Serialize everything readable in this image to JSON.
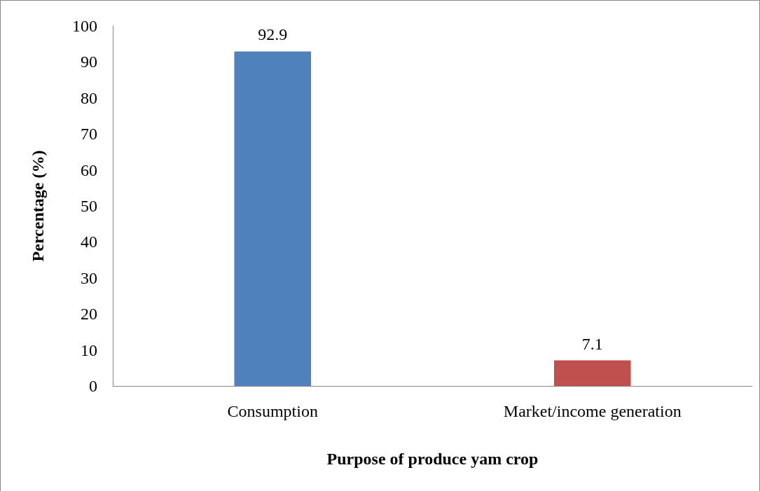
{
  "chart_data": {
    "type": "bar",
    "xlabel": "Purpose of produce yam crop",
    "ylabel": "Percentage (%)",
    "categories": [
      "Consumption",
      "Market/income generation"
    ],
    "values": [
      92.9,
      7.1
    ],
    "colors": [
      "#4f81bd",
      "#c0504d"
    ],
    "ylim": [
      0,
      100
    ],
    "yticks": [
      0,
      10,
      20,
      30,
      40,
      50,
      60,
      70,
      80,
      90,
      100
    ],
    "data_labels": true,
    "grid": false
  }
}
